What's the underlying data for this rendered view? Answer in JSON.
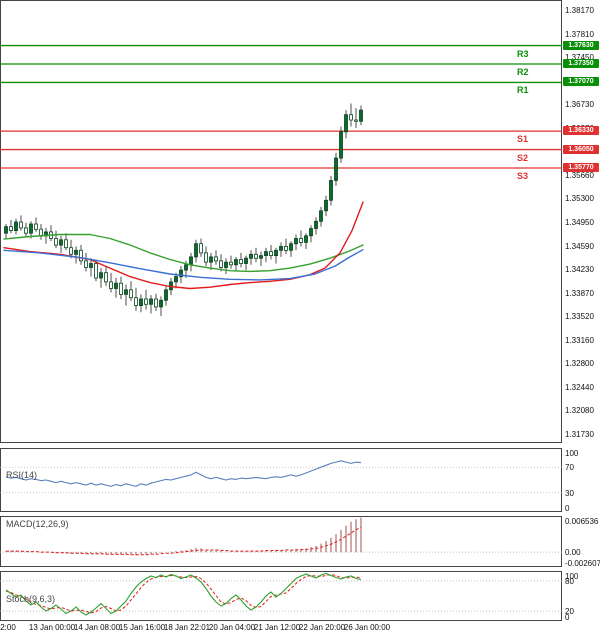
{
  "colors": {
    "resistance": "#0a8f08",
    "support": "#e03131",
    "bull": "#0b6b2d",
    "bull_border": "#07421c",
    "wick": "#222222",
    "border": "#444444",
    "guide": "#aaaaaa"
  },
  "price_axis": {
    "labels": [
      "1.38170",
      "1.37810",
      "1.37450",
      "1.37090",
      "1.36730",
      "1.36370",
      "1.36020",
      "1.35660",
      "1.35300",
      "1.34950",
      "1.34590",
      "1.34230",
      "1.33870",
      "1.33520",
      "1.33160",
      "1.32800",
      "1.32440",
      "1.32080",
      "1.31730"
    ]
  },
  "time_axis": {
    "labels": [
      "2:00",
      "13 Jan 00:00",
      "14 Jan 08:00",
      "15 Jan 16:00",
      "18 Jan 22:01",
      "20 Jan 04:00",
      "21 Jan 12:00",
      "22 Jan 20:00",
      "26 Jan 00:00"
    ]
  },
  "pivots": {
    "resistances": [
      {
        "name": "R3",
        "price": 1.3763,
        "tag": "1.37630"
      },
      {
        "name": "R2",
        "price": 1.3735,
        "tag": "1.37350"
      },
      {
        "name": "R1",
        "price": 1.3707,
        "tag": "1.37070"
      }
    ],
    "supports": [
      {
        "name": "S1",
        "price": 1.3633,
        "tag": "1.36330"
      },
      {
        "name": "S2",
        "price": 1.3605,
        "tag": "1.36050"
      },
      {
        "name": "S3",
        "price": 1.3577,
        "tag": "1.35770"
      }
    ]
  },
  "chart_data": {
    "type": "candlestick",
    "price_scale": {
      "top_label_value": 1.3817,
      "bottom_label_value": 1.3173
    },
    "candles": [
      [
        1.3478,
        1.3492,
        1.347,
        1.3488
      ],
      [
        1.3488,
        1.3498,
        1.3478,
        1.3482
      ],
      [
        1.3482,
        1.35,
        1.3476,
        1.3495
      ],
      [
        1.3495,
        1.3505,
        1.3482,
        1.3486
      ],
      [
        1.3486,
        1.3494,
        1.3472,
        1.3478
      ],
      [
        1.3478,
        1.3496,
        1.347,
        1.3492
      ],
      [
        1.3492,
        1.3502,
        1.348,
        1.3484
      ],
      [
        1.3484,
        1.3492,
        1.3468,
        1.3474
      ],
      [
        1.3474,
        1.3486,
        1.3462,
        1.348
      ],
      [
        1.348,
        1.349,
        1.3466,
        1.347
      ],
      [
        1.347,
        1.3482,
        1.3455,
        1.346
      ],
      [
        1.346,
        1.3474,
        1.3448,
        1.3468
      ],
      [
        1.3468,
        1.3478,
        1.3452,
        1.3456
      ],
      [
        1.3456,
        1.3468,
        1.344,
        1.3446
      ],
      [
        1.3446,
        1.3458,
        1.3432,
        1.3452
      ],
      [
        1.3452,
        1.346,
        1.343,
        1.3436
      ],
      [
        1.3436,
        1.3448,
        1.342,
        1.3426
      ],
      [
        1.3426,
        1.344,
        1.3412,
        1.3432
      ],
      [
        1.3432,
        1.3438,
        1.3405,
        1.341
      ],
      [
        1.341,
        1.3425,
        1.3395,
        1.3418
      ],
      [
        1.3418,
        1.3428,
        1.3398,
        1.3404
      ],
      [
        1.3404,
        1.3418,
        1.3388,
        1.3394
      ],
      [
        1.3394,
        1.341,
        1.338,
        1.3402
      ],
      [
        1.3402,
        1.3412,
        1.3378,
        1.3385
      ],
      [
        1.3385,
        1.34,
        1.3368,
        1.3392
      ],
      [
        1.3392,
        1.3405,
        1.3375,
        1.338
      ],
      [
        1.338,
        1.3395,
        1.336,
        1.3368
      ],
      [
        1.3368,
        1.3385,
        1.3358,
        1.3378
      ],
      [
        1.3378,
        1.3392,
        1.3362,
        1.337
      ],
      [
        1.337,
        1.3384,
        1.3356,
        1.3378
      ],
      [
        1.3378,
        1.3386,
        1.336,
        1.3366
      ],
      [
        1.3366,
        1.3382,
        1.3352,
        1.3376
      ],
      [
        1.3376,
        1.3398,
        1.3368,
        1.3392
      ],
      [
        1.3392,
        1.341,
        1.3384,
        1.3404
      ],
      [
        1.3404,
        1.3418,
        1.3394,
        1.3412
      ],
      [
        1.3412,
        1.3428,
        1.3402,
        1.3422
      ],
      [
        1.3422,
        1.3436,
        1.341,
        1.343
      ],
      [
        1.343,
        1.3448,
        1.342,
        1.3442
      ],
      [
        1.3442,
        1.3468,
        1.3434,
        1.3462
      ],
      [
        1.3462,
        1.347,
        1.3442,
        1.3448
      ],
      [
        1.3448,
        1.3458,
        1.3428,
        1.3434
      ],
      [
        1.3434,
        1.3448,
        1.3422,
        1.3442
      ],
      [
        1.3442,
        1.3452,
        1.343,
        1.3436
      ],
      [
        1.3436,
        1.3446,
        1.342,
        1.3426
      ],
      [
        1.3426,
        1.344,
        1.3416,
        1.3434
      ],
      [
        1.3434,
        1.3444,
        1.3424,
        1.343
      ],
      [
        1.343,
        1.3442,
        1.342,
        1.3438
      ],
      [
        1.3438,
        1.3448,
        1.3426,
        1.3432
      ],
      [
        1.3432,
        1.3444,
        1.3422,
        1.344
      ],
      [
        1.344,
        1.3452,
        1.343,
        1.3446
      ],
      [
        1.3446,
        1.3456,
        1.3434,
        1.344
      ],
      [
        1.344,
        1.345,
        1.3428,
        1.3444
      ],
      [
        1.3444,
        1.3456,
        1.3434,
        1.345
      ],
      [
        1.345,
        1.346,
        1.3438,
        1.3444
      ],
      [
        1.3444,
        1.3456,
        1.3432,
        1.3452
      ],
      [
        1.3452,
        1.3464,
        1.3442,
        1.3458
      ],
      [
        1.3458,
        1.347,
        1.3446,
        1.3452
      ],
      [
        1.3452,
        1.3466,
        1.3442,
        1.3462
      ],
      [
        1.3462,
        1.3476,
        1.3452,
        1.347
      ],
      [
        1.347,
        1.3482,
        1.3458,
        1.3464
      ],
      [
        1.3464,
        1.3478,
        1.3454,
        1.3474
      ],
      [
        1.3474,
        1.349,
        1.3464,
        1.3485
      ],
      [
        1.3485,
        1.3502,
        1.3476,
        1.3496
      ],
      [
        1.3496,
        1.3518,
        1.3488,
        1.3512
      ],
      [
        1.3512,
        1.3535,
        1.3504,
        1.3528
      ],
      [
        1.3528,
        1.3565,
        1.352,
        1.3558
      ],
      [
        1.3558,
        1.36,
        1.355,
        1.3592
      ],
      [
        1.3592,
        1.364,
        1.3585,
        1.3632
      ],
      [
        1.3632,
        1.3665,
        1.3622,
        1.3658
      ],
      [
        1.3658,
        1.3675,
        1.364,
        1.365
      ],
      [
        1.365,
        1.3668,
        1.3638,
        1.3648
      ],
      [
        1.3648,
        1.3672,
        1.3642,
        1.3665
      ]
    ],
    "moving_averages": [
      {
        "name": "sma-fast-green",
        "color": "#33a02c",
        "points": [
          [
            4,
            1.3469
          ],
          [
            30,
            1.3473
          ],
          [
            60,
            1.3476
          ],
          [
            90,
            1.3476
          ],
          [
            110,
            1.347
          ],
          [
            130,
            1.346
          ],
          [
            150,
            1.3448
          ],
          [
            170,
            1.3438
          ],
          [
            190,
            1.343
          ],
          [
            210,
            1.3425
          ],
          [
            230,
            1.3421
          ],
          [
            250,
            1.342
          ],
          [
            270,
            1.3421
          ],
          [
            290,
            1.3425
          ],
          [
            310,
            1.3431
          ],
          [
            330,
            1.344
          ],
          [
            348,
            1.345
          ],
          [
            363,
            1.346
          ]
        ]
      },
      {
        "name": "sma-slow-red",
        "color": "#e31a1c",
        "points": [
          [
            4,
            1.3456
          ],
          [
            30,
            1.345
          ],
          [
            60,
            1.3446
          ],
          [
            90,
            1.3438
          ],
          [
            110,
            1.3425
          ],
          [
            130,
            1.3412
          ],
          [
            150,
            1.3403
          ],
          [
            170,
            1.3397
          ],
          [
            190,
            1.3394
          ],
          [
            210,
            1.3396
          ],
          [
            230,
            1.34
          ],
          [
            250,
            1.3403
          ],
          [
            270,
            1.3405
          ],
          [
            290,
            1.3408
          ],
          [
            310,
            1.3415
          ],
          [
            325,
            1.3425
          ],
          [
            340,
            1.3448
          ],
          [
            352,
            1.3482
          ],
          [
            363,
            1.3525
          ]
        ]
      },
      {
        "name": "sma-mid-blue",
        "color": "#3b6fd4",
        "points": [
          [
            4,
            1.3452
          ],
          [
            40,
            1.3448
          ],
          [
            80,
            1.3441
          ],
          [
            110,
            1.3433
          ],
          [
            140,
            1.3424
          ],
          [
            170,
            1.3416
          ],
          [
            200,
            1.3411
          ],
          [
            230,
            1.3408
          ],
          [
            260,
            1.3407
          ],
          [
            290,
            1.3409
          ],
          [
            315,
            1.3416
          ],
          [
            335,
            1.3428
          ],
          [
            350,
            1.3442
          ],
          [
            363,
            1.3453
          ]
        ]
      }
    ],
    "indicators": {
      "rsi": {
        "label": "RSI(14)",
        "color": "#5a7fbe",
        "guides": [
          70,
          30
        ],
        "axis_labels": [
          {
            "text": "100",
            "value": 100
          },
          {
            "text": "70",
            "value": 70
          },
          {
            "text": "30",
            "value": 30
          },
          {
            "text": "0",
            "value": 0
          }
        ],
        "values": [
          55,
          53,
          54,
          52,
          50,
          52,
          51,
          49,
          50,
          48,
          46,
          48,
          46,
          44,
          46,
          44,
          42,
          45,
          42,
          44,
          42,
          40,
          43,
          41,
          44,
          42,
          40,
          44,
          42,
          45,
          47,
          49,
          51,
          50,
          52,
          54,
          56,
          58,
          62,
          58,
          54,
          52,
          54,
          52,
          50,
          52,
          51,
          53,
          52,
          53,
          54,
          53,
          52,
          54,
          55,
          54,
          56,
          58,
          56,
          58,
          61,
          64,
          67,
          70,
          73,
          76,
          78,
          80,
          78,
          76,
          78,
          77
        ]
      },
      "macd": {
        "label": "MACD(12,26,9)",
        "hist_color": "#a05050",
        "signal_color": "#e31a1c",
        "range": {
          "max": 0.0068,
          "min": -0.0028
        },
        "axis_labels": [
          {
            "text": "0.006536",
            "value": 0.006536
          },
          {
            "text": "0.00",
            "value": 0
          },
          {
            "text": "-0.002607",
            "value": -0.002607
          }
        ],
        "histogram": [
          0.0002,
          0.0003,
          0.0002,
          0.0001,
          0.0,
          0.0001,
          0.0,
          -0.0001,
          0.0,
          -0.0001,
          -0.0002,
          -0.0001,
          -0.0002,
          -0.0003,
          -0.0002,
          -0.0003,
          -0.0004,
          -0.0003,
          -0.0004,
          -0.0003,
          -0.0004,
          -0.0005,
          -0.0004,
          -0.0005,
          -0.0004,
          -0.0005,
          -0.0006,
          -0.0004,
          -0.0005,
          -0.0003,
          -0.0002,
          -0.0001,
          0.0,
          0.0001,
          0.0002,
          0.0003,
          0.0004,
          0.0006,
          0.0008,
          0.0007,
          0.0005,
          0.0004,
          0.0003,
          0.0002,
          0.0001,
          0.0002,
          0.0001,
          0.0002,
          0.0002,
          0.0003,
          0.0003,
          0.0002,
          0.0003,
          0.0003,
          0.0004,
          0.0004,
          0.0005,
          0.0005,
          0.0006,
          0.0006,
          0.0007,
          0.0009,
          0.0012,
          0.0016,
          0.0021,
          0.0027,
          0.0034,
          0.0042,
          0.005,
          0.0057,
          0.0062,
          0.0065
        ],
        "signal": [
          0.0002,
          0.0002,
          0.0002,
          0.0002,
          0.0001,
          0.0001,
          0.0001,
          0.0,
          0.0,
          0.0,
          -0.0001,
          -0.0001,
          -0.0001,
          -0.0002,
          -0.0002,
          -0.0002,
          -0.0003,
          -0.0003,
          -0.0003,
          -0.0003,
          -0.0004,
          -0.0004,
          -0.0004,
          -0.0004,
          -0.0004,
          -0.0005,
          -0.0005,
          -0.0005,
          -0.0005,
          -0.0004,
          -0.0004,
          -0.0003,
          -0.0002,
          -0.0002,
          -0.0001,
          0.0,
          0.0001,
          0.0002,
          0.0003,
          0.0004,
          0.0004,
          0.0004,
          0.0004,
          0.0003,
          0.0003,
          0.0002,
          0.0002,
          0.0002,
          0.0002,
          0.0002,
          0.0002,
          0.0002,
          0.0003,
          0.0003,
          0.0003,
          0.0003,
          0.0004,
          0.0004,
          0.0004,
          0.0005,
          0.0005,
          0.0006,
          0.0007,
          0.0009,
          0.0012,
          0.0015,
          0.0019,
          0.0024,
          0.003,
          0.0036,
          0.0042,
          0.0047
        ]
      },
      "stoch": {
        "label": "Stoch(9,6,3)",
        "k_color": "#2ca02c",
        "d_color": "#e31a1c",
        "guides": [
          80,
          20
        ],
        "axis_labels": [
          {
            "text": "100",
            "value": 100
          },
          {
            "text": "80",
            "value": 80
          },
          {
            "text": "20",
            "value": 20
          },
          {
            "text": "0",
            "value": 0
          }
        ],
        "k": [
          62,
          55,
          48,
          52,
          40,
          32,
          38,
          28,
          20,
          25,
          32,
          24,
          15,
          20,
          28,
          18,
          12,
          18,
          26,
          35,
          25,
          15,
          20,
          30,
          40,
          55,
          68,
          78,
          85,
          90,
          87,
          92,
          88,
          93,
          90,
          85,
          88,
          92,
          86,
          78,
          65,
          50,
          38,
          30,
          35,
          45,
          52,
          42,
          30,
          22,
          28,
          38,
          50,
          58,
          48,
          55,
          65,
          75,
          85,
          90,
          94,
          90,
          86,
          92,
          95,
          91,
          87,
          84,
          88,
          90,
          85,
          83
        ],
        "d": [
          60,
          57,
          52,
          50,
          44,
          38,
          33,
          31,
          27,
          24,
          26,
          27,
          24,
          20,
          21,
          22,
          19,
          16,
          19,
          26,
          29,
          25,
          20,
          22,
          30,
          42,
          54,
          67,
          77,
          84,
          87,
          89,
          89,
          91,
          90,
          88,
          87,
          88,
          89,
          85,
          76,
          64,
          51,
          38,
          34,
          37,
          43,
          46,
          41,
          31,
          27,
          29,
          39,
          49,
          52,
          54,
          56,
          65,
          75,
          83,
          89,
          91,
          90,
          89,
          91,
          93,
          91,
          87,
          86,
          87,
          88,
          86
        ]
      }
    }
  }
}
